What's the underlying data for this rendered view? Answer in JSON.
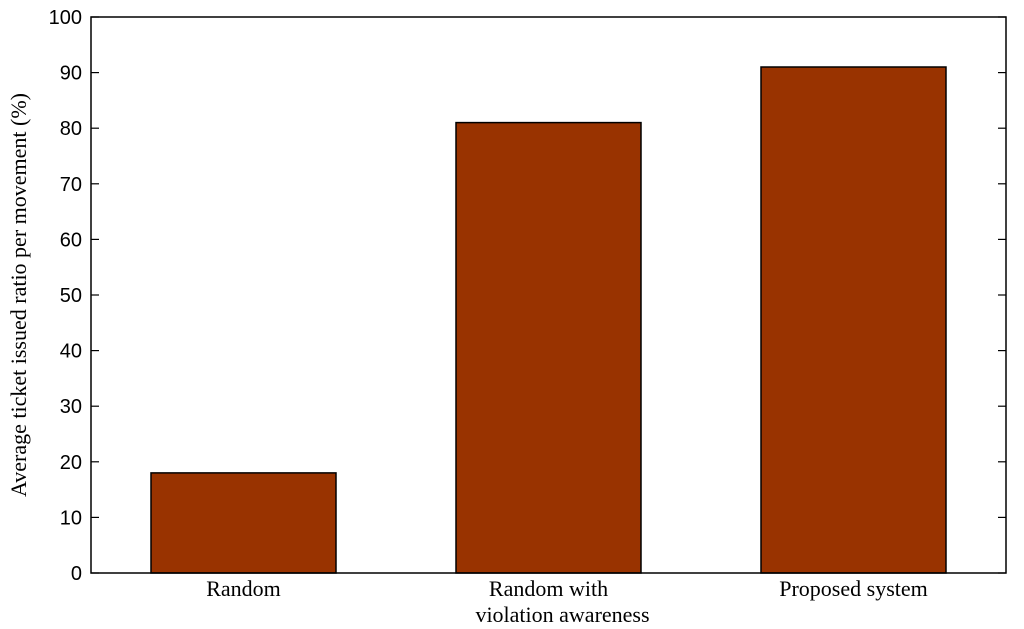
{
  "chart_data": {
    "type": "bar",
    "categories": [
      [
        "Random"
      ],
      [
        "Random with",
        "violation awareness"
      ],
      [
        "Proposed system"
      ]
    ],
    "values": [
      18,
      81,
      91
    ],
    "title": "",
    "xlabel": "",
    "ylabel": "Average ticket issued ratio per movement (%)",
    "ylim": [
      0,
      100
    ],
    "yticks": [
      0,
      10,
      20,
      30,
      40,
      50,
      60,
      70,
      80,
      90,
      100
    ],
    "grid": false,
    "bar_color": "#993300",
    "bar_edge_color": "#000000"
  }
}
